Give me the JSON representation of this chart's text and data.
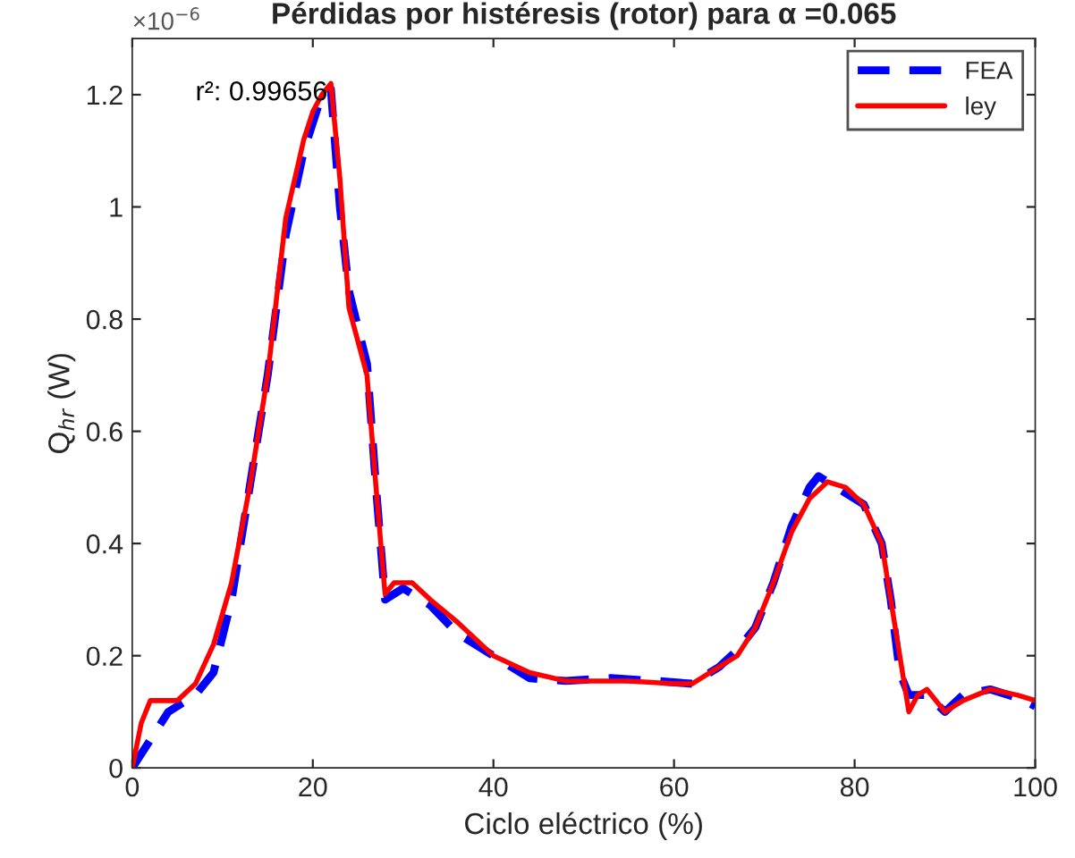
{
  "chart_data": {
    "type": "line",
    "title": "Pérdidas por histéresis (rotor) para α =0.065",
    "xlabel": "Ciclo eléctrico (%)",
    "ylabel": "Q$_{hr}$ (W)",
    "xlim": [
      0,
      100
    ],
    "xticks": [
      0,
      20,
      40,
      60,
      80,
      100
    ],
    "ylim": [
      0,
      1.3
    ],
    "yticks": [
      0,
      0.2,
      0.4,
      0.6,
      0.8,
      1,
      1.2
    ],
    "grid": false,
    "legend": "top right",
    "annotations": [
      "×10$^{−6}$",
      "r²: 0.99656"
    ],
    "series": [
      {
        "name": "FEA",
        "color": "#0000ff",
        "line_style": "dashed",
        "x": [
          0,
          2,
          4,
          7,
          9,
          11,
          13,
          15,
          17,
          19,
          21,
          22,
          23,
          24,
          26,
          27,
          28,
          30,
          33,
          36,
          40,
          44,
          48,
          53,
          58,
          62,
          65,
          67,
          69,
          71,
          73,
          75,
          76,
          78,
          81,
          83,
          84,
          85,
          86,
          87,
          88,
          90,
          92,
          95,
          98,
          100
        ],
        "values": [
          0,
          0.05,
          0.1,
          0.13,
          0.17,
          0.3,
          0.5,
          0.7,
          0.95,
          1.1,
          1.2,
          1.21,
          1.0,
          0.85,
          0.72,
          0.5,
          0.3,
          0.32,
          0.29,
          0.24,
          0.2,
          0.16,
          0.155,
          0.16,
          0.155,
          0.15,
          0.18,
          0.21,
          0.25,
          0.33,
          0.43,
          0.5,
          0.52,
          0.5,
          0.47,
          0.4,
          0.3,
          0.17,
          0.13,
          0.13,
          0.13,
          0.1,
          0.13,
          0.14,
          0.125,
          0.11
        ]
      },
      {
        "name": "ley",
        "color": "#ff0000",
        "line_style": "solid",
        "x": [
          0,
          1,
          2,
          5,
          7,
          9,
          11,
          13,
          15,
          17,
          19,
          20,
          21,
          22,
          23,
          24,
          26,
          27,
          28,
          29,
          31,
          33,
          36,
          40,
          44,
          48,
          55,
          60,
          62,
          65,
          67,
          69,
          71,
          73,
          75,
          77,
          79,
          81,
          83,
          84,
          85,
          86,
          87,
          88,
          90,
          92,
          95,
          98,
          100
        ],
        "values": [
          0,
          0.08,
          0.12,
          0.12,
          0.15,
          0.22,
          0.33,
          0.5,
          0.7,
          0.98,
          1.12,
          1.17,
          1.2,
          1.22,
          1.05,
          0.82,
          0.7,
          0.5,
          0.31,
          0.33,
          0.33,
          0.3,
          0.26,
          0.2,
          0.17,
          0.155,
          0.155,
          0.15,
          0.15,
          0.18,
          0.2,
          0.25,
          0.33,
          0.42,
          0.48,
          0.51,
          0.5,
          0.47,
          0.4,
          0.3,
          0.2,
          0.1,
          0.13,
          0.14,
          0.1,
          0.12,
          0.14,
          0.13,
          0.12
        ]
      }
    ]
  }
}
